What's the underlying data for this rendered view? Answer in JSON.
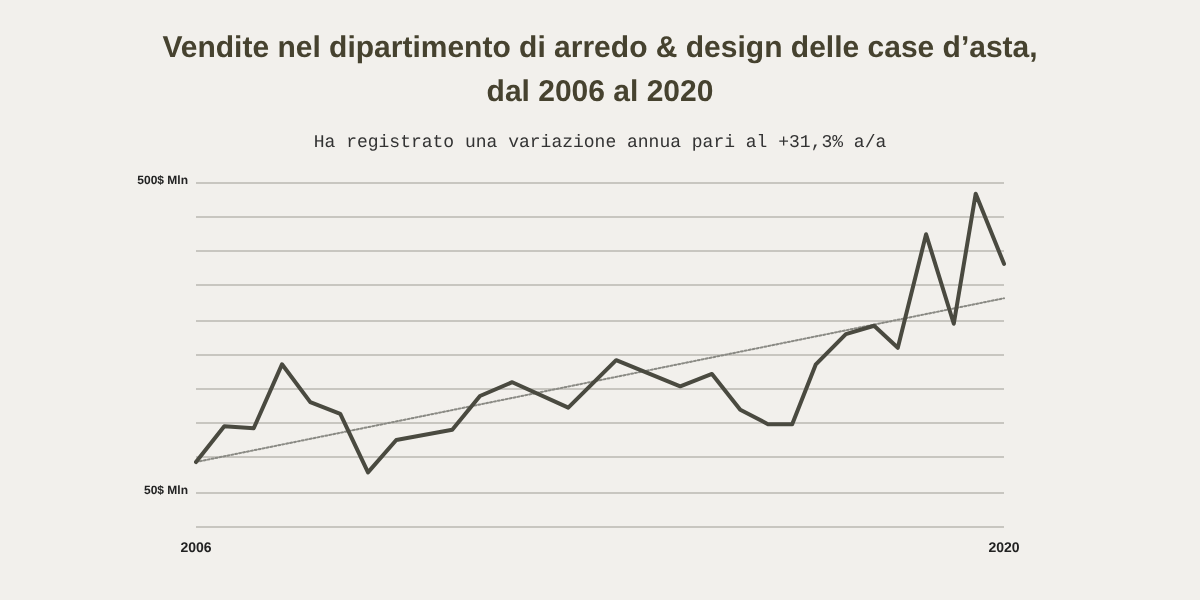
{
  "chart_data": {
    "type": "line",
    "title": "Vendite nel dipartimento di arredo & design delle case d’asta,\ndal 2006 al 2020",
    "subtitle": "Ha registrato una variazione annua pari al +31,3% a/a",
    "series": [
      {
        "color": "#4a4a40",
        "line_style": "solid",
        "x": [
          2006.0,
          2006.49,
          2007.0,
          2007.49,
          2007.98,
          2008.5,
          2008.98,
          2009.47,
          2010.44,
          2010.92,
          2011.48,
          2012.45,
          2013.28,
          2014.39,
          2014.94,
          2015.43,
          2015.91,
          2016.33,
          2016.74,
          2017.26,
          2017.75,
          2018.16,
          2018.65,
          2019.13,
          2019.51,
          2020.0
        ],
        "values": [
          93,
          145,
          142,
          235,
          180,
          163,
          78,
          125,
          140,
          189,
          209,
          172,
          241,
          203,
          221,
          169,
          148,
          148,
          235,
          279,
          291,
          259,
          424,
          294,
          483,
          381
        ]
      },
      {
        "color": "#8a8a84",
        "line_style": "dotted",
        "x": [
          2006,
          2020
        ],
        "values": [
          93,
          331
        ]
      }
    ],
    "xlim": [
      2006,
      2020
    ],
    "xticks": [
      2006,
      2020
    ],
    "ylim": [
      0,
      500
    ],
    "yticks": [
      {
        "value": 0,
        "label": null
      },
      {
        "value": 50,
        "label": "50$ Mln"
      },
      {
        "value": 100,
        "label": null
      },
      {
        "value": 150,
        "label": null
      },
      {
        "value": 200,
        "label": null
      },
      {
        "value": 250,
        "label": null
      },
      {
        "value": 300,
        "label": null
      },
      {
        "value": 350,
        "label": null
      },
      {
        "value": 400,
        "label": null
      },
      {
        "value": 450,
        "label": null
      },
      {
        "value": 500,
        "label": "500$ Mln"
      }
    ],
    "grid": "y",
    "marker": "none"
  }
}
